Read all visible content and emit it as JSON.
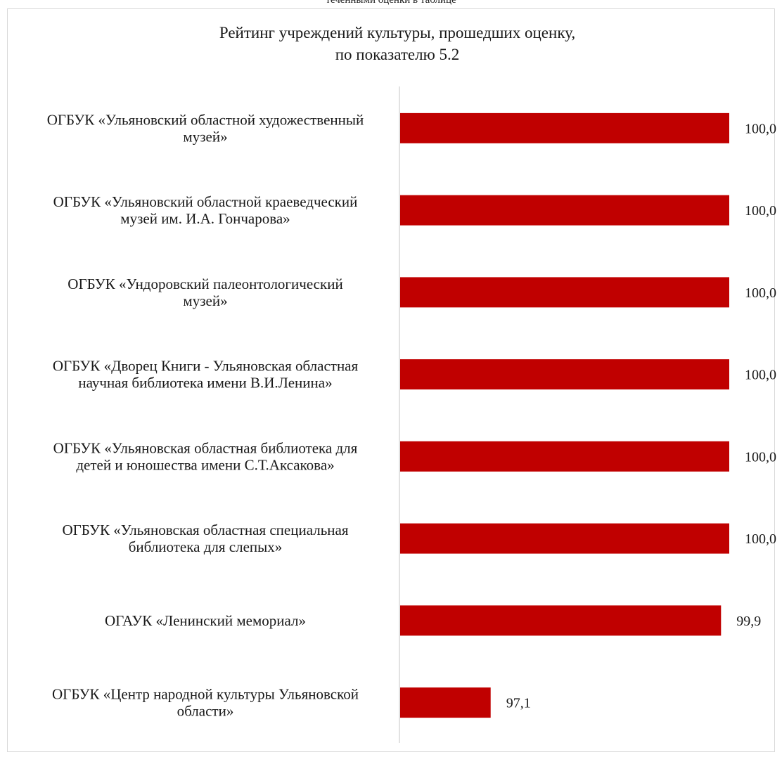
{
  "caption": "теченными оценки в таблице",
  "chart_data": {
    "type": "bar",
    "orientation": "horizontal",
    "title_lines": [
      "Рейтинг учреждений культуры, прошедших оценку,",
      "по показателю 5.2"
    ],
    "categories": [
      [
        "ОГБУК «Ульяновский областной художественный",
        "музей»"
      ],
      [
        "ОГБУК «Ульяновский областной краеведческий",
        "музей им. И.А. Гончарова»"
      ],
      [
        "ОГБУК «Ундоровский палеонтологический",
        "музей»"
      ],
      [
        "ОГБУК «Дворец Книги - Ульяновская областная",
        "научная библиотека имени В.И.Ленина»"
      ],
      [
        "ОГБУК  «Ульяновская областная библиотека для",
        "детей и юношества имени С.Т.Аксакова»"
      ],
      [
        "ОГБУК «Ульяновская областная специальная",
        "библиотека для слепых»"
      ],
      [
        "ОГАУК «Ленинский мемориал»"
      ],
      [
        "ОГБУК «Центр народной культуры Ульяновской",
        "области»"
      ]
    ],
    "values": [
      100.0,
      100.0,
      100.0,
      100.0,
      100.0,
      100.0,
      99.9,
      97.1
    ],
    "value_labels": [
      "100,0",
      "100,0",
      "100,0",
      "100,0",
      "100,0",
      "100,0",
      "99,9",
      "97,1"
    ],
    "xlim": [
      96.0,
      100.0
    ],
    "grid": false,
    "legend": "none",
    "bar_color": "#c00000"
  }
}
